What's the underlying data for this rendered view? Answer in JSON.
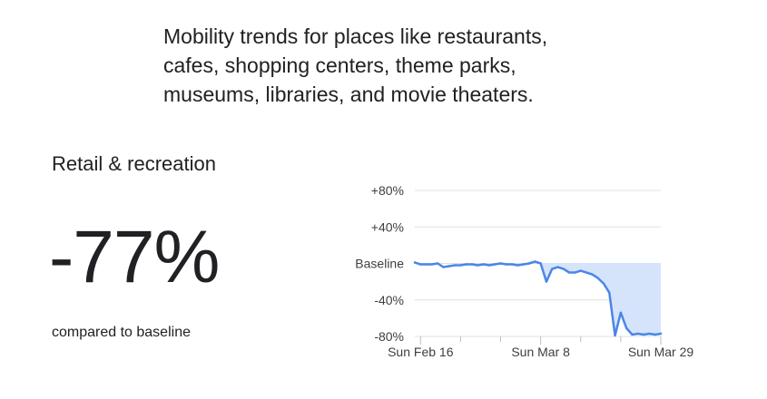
{
  "description": {
    "lines": [
      "Mobility trends for places like restaurants,",
      "cafes, shopping centers, theme parks,",
      "museums, libraries, and movie theaters."
    ]
  },
  "category": "Retail & recreation",
  "headline_value": "-77%",
  "comparison_text": "compared to baseline",
  "colors": {
    "line": "#4a86e8",
    "fill": "#d6e4fb",
    "grid": "#e0e0e0",
    "text": "#202124"
  },
  "chart_data": {
    "type": "area",
    "title": "",
    "xlabel": "",
    "ylabel": "",
    "ylim": [
      -80,
      80
    ],
    "grid": true,
    "y_ticks": [
      {
        "value": 80,
        "label": "+80%"
      },
      {
        "value": 40,
        "label": "+40%"
      },
      {
        "value": 0,
        "label": "Baseline"
      },
      {
        "value": -40,
        "label": "-40%"
      },
      {
        "value": -80,
        "label": "-80%"
      }
    ],
    "x_ticks": [
      {
        "index": 1,
        "label": "Sun Feb 16"
      },
      {
        "index": 22,
        "label": "Sun Mar 8"
      },
      {
        "index": 43,
        "label": "Sun Mar 29"
      }
    ],
    "x": [
      "Feb 15",
      "Feb 16",
      "Feb 17",
      "Feb 18",
      "Feb 19",
      "Feb 20",
      "Feb 21",
      "Feb 22",
      "Feb 23",
      "Feb 24",
      "Feb 25",
      "Feb 26",
      "Feb 27",
      "Feb 28",
      "Feb 29",
      "Mar 1",
      "Mar 2",
      "Mar 3",
      "Mar 4",
      "Mar 5",
      "Mar 6",
      "Mar 7",
      "Mar 8",
      "Mar 9",
      "Mar 10",
      "Mar 11",
      "Mar 12",
      "Mar 13",
      "Mar 14",
      "Mar 15",
      "Mar 16",
      "Mar 17",
      "Mar 18",
      "Mar 19",
      "Mar 20",
      "Mar 21",
      "Mar 22",
      "Mar 23",
      "Mar 24",
      "Mar 25",
      "Mar 26",
      "Mar 27",
      "Mar 28",
      "Mar 29"
    ],
    "series": [
      {
        "values": [
          1,
          -1,
          -1,
          -1,
          0,
          -4,
          -3,
          -2,
          -2,
          -1,
          -1,
          -2,
          -1,
          -2,
          -1,
          0,
          -1,
          -1,
          -2,
          -1,
          0,
          2,
          0,
          -20,
          -6,
          -4,
          -6,
          -10,
          -10,
          -8,
          -10,
          -12,
          -16,
          -22,
          -32,
          -79,
          -54,
          -71,
          -78,
          -77,
          -78,
          -77,
          -78,
          -77
        ]
      }
    ]
  }
}
